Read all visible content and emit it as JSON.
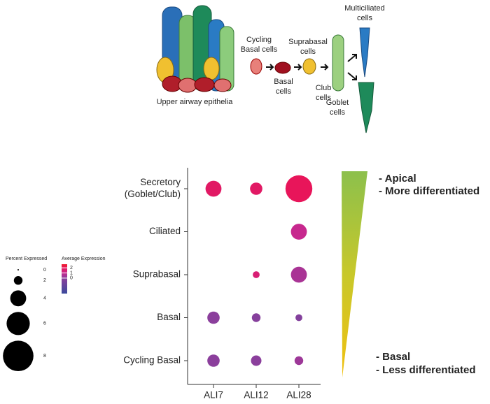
{
  "illustration": {
    "labels": {
      "cycling": [
        "Cycling",
        "Basal cells"
      ],
      "basal": [
        "Basal",
        "cells"
      ],
      "suprabasal": [
        "Suprabasal",
        "cells"
      ],
      "club": [
        "Club",
        "cells"
      ],
      "multiciliated": [
        "Multiciliated",
        "cells"
      ],
      "goblet": [
        "Goblet",
        "cells"
      ],
      "epithelia": [
        "Upper airway epithelia"
      ]
    }
  },
  "chart_data": {
    "type": "dot",
    "x_categories": [
      "ALI7",
      "ALI12",
      "ALI28"
    ],
    "y_categories": [
      [
        "Secretory",
        "(Goblet/Club)"
      ],
      [
        "Ciliated"
      ],
      [
        "Suprabasal"
      ],
      [
        "Basal"
      ],
      [
        "Cycling Basal"
      ]
    ],
    "values": [
      [
        1.8,
        1.8,
        2.0
      ],
      [
        null,
        null,
        1.0
      ],
      [
        null,
        1.5,
        0.5
      ],
      [
        0,
        -0.2,
        -0.3
      ],
      [
        0,
        0,
        0.3
      ]
    ],
    "sizes": [
      [
        4,
        3,
        7
      ],
      [
        null,
        null,
        4
      ],
      [
        null,
        1.5,
        4
      ],
      [
        3,
        2,
        1.5
      ],
      [
        3,
        2.5,
        2
      ]
    ],
    "size_legend_title": "Percent Expressed",
    "size_legend": [
      0,
      2,
      4,
      6,
      8
    ],
    "color_legend_title": "Average Expression",
    "clim": [
      -3,
      2.7
    ],
    "color_ticks": [
      2,
      1,
      0
    ],
    "color_stops": [
      {
        "value": -3,
        "color": "#3b4a9c"
      },
      {
        "value": 0,
        "color": "#8b3f9c"
      },
      {
        "value": 1,
        "color": "#c7288e"
      },
      {
        "value": 2,
        "color": "#e8155a"
      },
      {
        "value": 2.7,
        "color": "#ee1c2c"
      }
    ]
  },
  "gradient_labels": {
    "top": [
      "- Apical",
      "- More differentiated"
    ],
    "bottom": [
      "- Basal",
      "- Less differentiated"
    ]
  }
}
